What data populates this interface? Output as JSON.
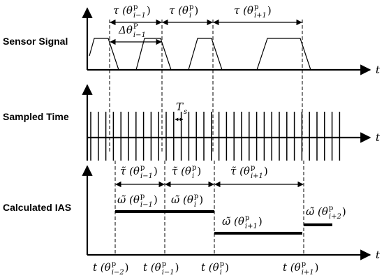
{
  "rows": {
    "sensor": "Sensor Signal",
    "sampled": "Sampled Time",
    "ias": "Calculated IAS"
  },
  "axis_label": "t",
  "sample_period": {
    "base": "T",
    "sub": "s"
  },
  "tau": [
    {
      "base": "τ (θ",
      "sup": "p",
      "sub": "i−1",
      "end": ")"
    },
    {
      "base": "τ (θ",
      "sup": "p",
      "sub": "i",
      "end": ")"
    },
    {
      "base": "τ (θ",
      "sup": "p",
      "sub": "i+1",
      "end": ")"
    }
  ],
  "delta": {
    "base": "Δθ",
    "sup": "P",
    "sub": "i−1"
  },
  "tau_tilde": [
    {
      "base": "τ̃ (θ",
      "sup": "p",
      "sub": "i−1",
      "end": ")"
    },
    {
      "base": "τ̃ (θ",
      "sup": "p",
      "sub": "i",
      "end": ")"
    },
    {
      "base": "τ̃ (θ",
      "sup": "p",
      "sub": "i+1",
      "end": ")"
    }
  ],
  "omega": [
    {
      "base": "ω̃ (θ",
      "sup": "p",
      "sub": "i−1",
      "end": ")"
    },
    {
      "base": "ω̃ (θ",
      "sup": "p",
      "sub": "i",
      "end": ")"
    },
    {
      "base": "ω̃ (θ",
      "sup": "p",
      "sub": "i+1",
      "end": ")"
    },
    {
      "base": "ω̃ (θ",
      "sup": "p",
      "sub": "i+2",
      "end": ")"
    }
  ],
  "time_marks": [
    {
      "base": "t (θ",
      "sup": "p",
      "sub": "i−2",
      "end": ")"
    },
    {
      "base": "t (θ",
      "sup": "p",
      "sub": "i−1",
      "end": ")"
    },
    {
      "base": "t (θ",
      "sup": "p",
      "sub": "i",
      "end": ")"
    },
    {
      "base": "t (θ",
      "sup": "p",
      "sub": "i+1",
      "end": ")"
    }
  ]
}
